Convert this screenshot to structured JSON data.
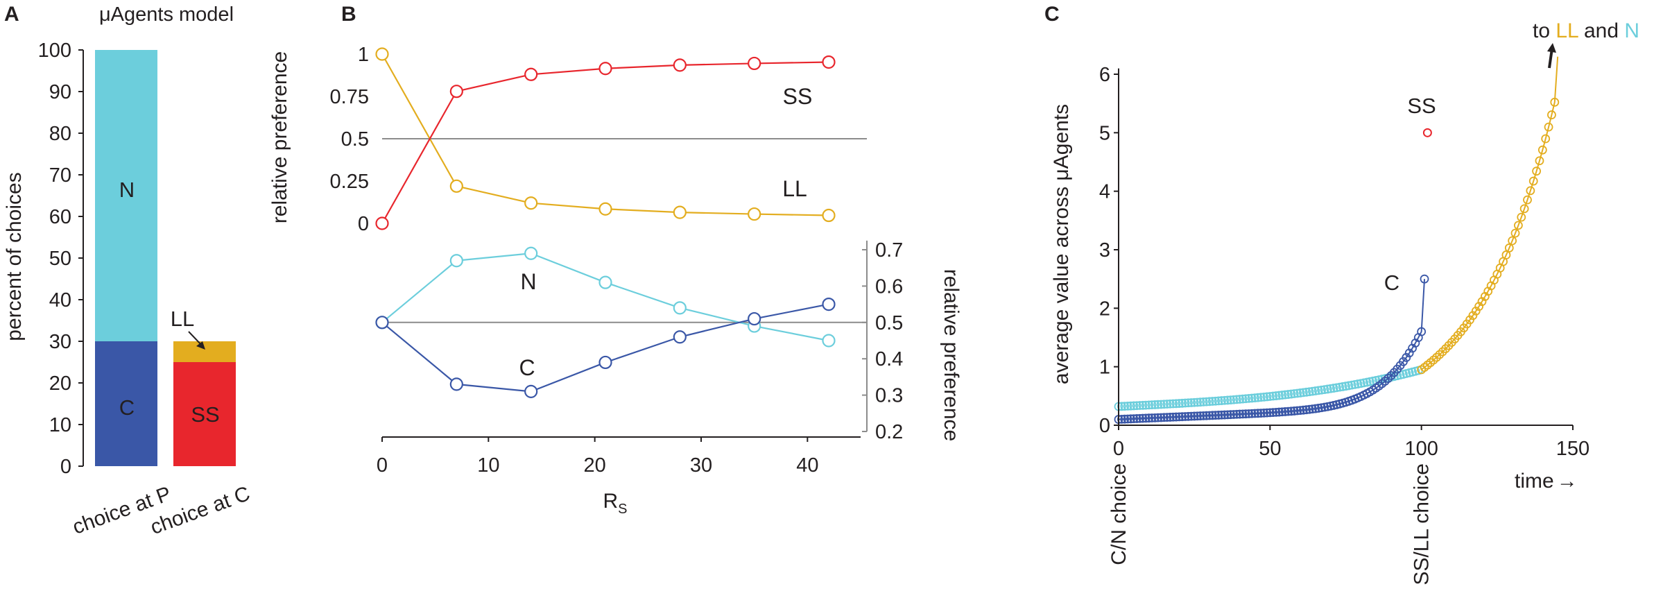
{
  "colors": {
    "N": "#6ccedc",
    "C": "#3a57a7",
    "SS": "#e8262d",
    "LL": "#e3ad1f",
    "axis": "#231f20",
    "ref": "#8c8c8c"
  },
  "chart_data": [
    {
      "panel": "A",
      "type": "bar",
      "stacked": true,
      "title": "μAgents model",
      "ylabel": "percent of choices",
      "ylim": [
        0,
        100
      ],
      "yticks": [
        0,
        10,
        20,
        30,
        40,
        50,
        60,
        70,
        80,
        90,
        100
      ],
      "categories": [
        "choice at P",
        "choice at C"
      ],
      "series": [
        {
          "name": "C",
          "label": "C",
          "values": [
            30,
            0
          ]
        },
        {
          "name": "N",
          "label": "N",
          "values": [
            70,
            0
          ]
        },
        {
          "name": "SS",
          "label": "SS",
          "values": [
            0,
            25
          ]
        },
        {
          "name": "LL",
          "label": "LL",
          "values": [
            0,
            5
          ]
        }
      ]
    },
    {
      "panel": "B",
      "type": "line",
      "xlabel": "R",
      "xlabel_sub": "S",
      "x": [
        0,
        7,
        14,
        21,
        28,
        35,
        42
      ],
      "xticks": [
        0,
        10,
        20,
        30,
        40
      ],
      "xlim": [
        0,
        45
      ],
      "top": {
        "ylabel": "relative preference",
        "ylim": [
          0,
          1
        ],
        "yticks": [
          "0",
          "0.25",
          "0.5",
          "0.75",
          "1"
        ],
        "reference": 0.5,
        "series": [
          {
            "name": "SS",
            "label": "SS",
            "values": [
              0,
              0.78,
              0.88,
              0.915,
              0.935,
              0.945,
              0.953
            ]
          },
          {
            "name": "LL",
            "label": "LL",
            "values": [
              1,
              0.22,
              0.12,
              0.085,
              0.065,
              0.055,
              0.047
            ]
          }
        ]
      },
      "bottom": {
        "ylabel": "relative preference",
        "ylim": [
          0.2,
          0.7
        ],
        "yticks": [
          "0.2",
          "0.3",
          "0.4",
          "0.5",
          "0.6",
          "0.7"
        ],
        "reference": 0.5,
        "series": [
          {
            "name": "N",
            "label": "N",
            "values": [
              0.5,
              0.67,
              0.69,
              0.61,
              0.54,
              0.49,
              0.45
            ]
          },
          {
            "name": "C",
            "label": "C",
            "values": [
              0.5,
              0.33,
              0.31,
              0.39,
              0.46,
              0.51,
              0.55
            ]
          }
        ]
      }
    },
    {
      "panel": "C",
      "type": "scatter",
      "ylabel": "average value across μAgents",
      "xlabel": "time",
      "xlabel_arrow": "→",
      "xlim": [
        0,
        150
      ],
      "ylim": [
        0,
        6
      ],
      "xticks": [
        0,
        50,
        100,
        150
      ],
      "yticks": [
        0,
        1,
        2,
        3,
        4,
        5,
        6
      ],
      "event_labels": [
        {
          "x": 0,
          "text": "C/N choice"
        },
        {
          "x": 100,
          "text": "SS/LL choice"
        }
      ],
      "annotation": {
        "prefix": "to",
        "ll": "LL",
        "and": "and",
        "n": "N"
      },
      "series": [
        {
          "name": "N",
          "label": "N",
          "model": "value of N rising 0.32 → 0.95 over time 0–100"
        },
        {
          "name": "C",
          "label": "C",
          "model": "value of C rising 0.1 → 1.6 over time 0–100, then 2.5 at 101"
        },
        {
          "name": "LL",
          "label": "LL",
          "model": "value of LL rising 0.95 at 101 → ~6.3 at 145"
        },
        {
          "name": "SS",
          "label": "SS",
          "points": [
            [
              102,
              5
            ]
          ]
        }
      ]
    }
  ],
  "panels": {
    "A": "A",
    "B": "B",
    "C": "C"
  }
}
